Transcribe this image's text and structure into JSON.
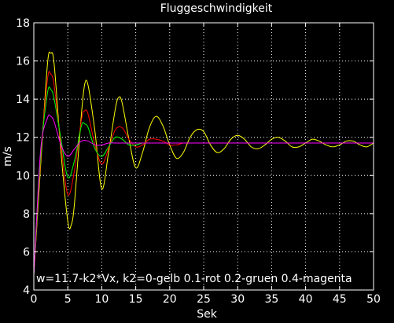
{
  "chart_data": {
    "type": "line",
    "title": "Fluggeschwindigkeit",
    "xlabel": "Sek",
    "ylabel": "m/s",
    "xlim": [
      0,
      50
    ],
    "ylim": [
      4,
      18
    ],
    "xticks": [
      "0",
      "5",
      "10",
      "15",
      "20",
      "25",
      "30",
      "35",
      "40",
      "45",
      "50"
    ],
    "yticks": [
      "4",
      "6",
      "8",
      "10",
      "12",
      "14",
      "16",
      "18"
    ],
    "grid": true,
    "annotation": "w=11.7-k2*Vx, k2=0-gelb 0.1-rot 0.2-gruen 0.4-magenta",
    "series": [
      {
        "color": "#ffff00",
        "x": [
          0,
          1,
          2,
          2.5,
          3,
          4,
          5,
          5.5,
          6,
          7,
          7.5,
          8,
          9,
          10,
          11,
          12,
          12.5,
          13,
          14,
          15,
          16,
          17,
          18,
          19,
          20,
          21,
          22,
          23,
          24,
          25,
          26,
          27,
          28,
          29,
          30,
          31,
          32,
          33,
          34,
          35,
          36,
          37,
          38,
          39,
          40,
          41,
          42,
          43,
          44,
          45,
          46,
          47,
          48,
          49,
          50
        ],
        "y": [
          4.8,
          10.5,
          15.8,
          16.4,
          15.8,
          11.2,
          7.6,
          7.4,
          8.6,
          13.2,
          14.8,
          14.7,
          12.3,
          9.3,
          11.2,
          13.5,
          14.1,
          13.8,
          11.9,
          10.4,
          11.2,
          12.5,
          13.1,
          12.6,
          11.6,
          10.9,
          11.2,
          12.0,
          12.4,
          12.3,
          11.6,
          11.2,
          11.4,
          11.9,
          12.1,
          11.9,
          11.5,
          11.4,
          11.6,
          11.9,
          12.0,
          11.8,
          11.5,
          11.5,
          11.7,
          11.9,
          11.8,
          11.6,
          11.5,
          11.6,
          11.8,
          11.8,
          11.6,
          11.5,
          11.7
        ]
      },
      {
        "color": "#ff0000",
        "x": [
          0,
          1,
          2,
          2.5,
          3,
          4,
          5,
          6,
          7,
          7.5,
          8,
          9,
          10,
          11,
          12,
          13,
          14,
          15,
          16,
          17,
          18,
          19,
          20,
          21,
          22,
          23,
          24,
          25,
          30,
          35,
          40,
          45,
          50
        ],
        "y": [
          4.8,
          10.8,
          15.0,
          15.3,
          14.7,
          11.6,
          9.0,
          10.3,
          12.9,
          13.4,
          13.2,
          11.6,
          10.6,
          11.4,
          12.4,
          12.5,
          11.9,
          11.5,
          11.6,
          11.9,
          11.9,
          11.8,
          11.6,
          11.6,
          11.7,
          11.7,
          11.7,
          11.7,
          11.7,
          11.7,
          11.7,
          11.7,
          11.7
        ]
      },
      {
        "color": "#00ff00",
        "x": [
          0,
          1,
          2,
          2.5,
          3,
          4,
          5,
          6,
          7,
          7.5,
          8,
          9,
          10,
          11,
          12,
          13,
          14,
          15,
          16,
          17,
          18,
          19,
          20,
          25,
          30,
          35,
          40,
          45,
          50
        ],
        "y": [
          4.8,
          11.0,
          14.3,
          14.5,
          14.0,
          11.9,
          9.9,
          10.8,
          12.6,
          12.7,
          12.5,
          11.4,
          11.0,
          11.5,
          12.0,
          11.9,
          11.6,
          11.6,
          11.7,
          11.7,
          11.7,
          11.7,
          11.7,
          11.7,
          11.7,
          11.7,
          11.7,
          11.7,
          11.7
        ]
      },
      {
        "color": "#ff00ff",
        "x": [
          0,
          1,
          2,
          2.5,
          3,
          4,
          5,
          6,
          7,
          8,
          9,
          10,
          11,
          12,
          13,
          14,
          15,
          20,
          25,
          30,
          35,
          40,
          45,
          50
        ],
        "y": [
          4.8,
          11.3,
          13.0,
          13.1,
          12.8,
          11.6,
          11.0,
          11.4,
          11.8,
          11.8,
          11.6,
          11.6,
          11.7,
          11.7,
          11.7,
          11.7,
          11.7,
          11.7,
          11.7,
          11.7,
          11.7,
          11.7,
          11.7,
          11.7
        ]
      }
    ]
  }
}
